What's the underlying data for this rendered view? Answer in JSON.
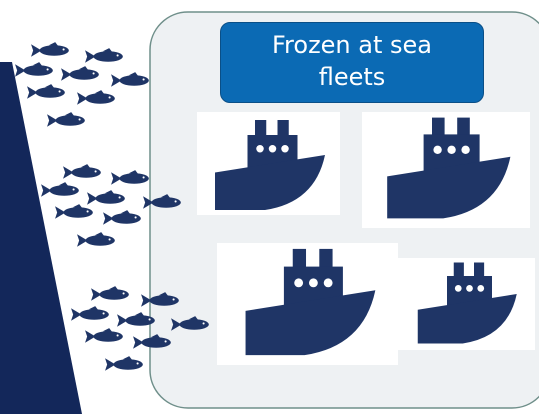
{
  "title": "Frozen at sea fleets"
}
